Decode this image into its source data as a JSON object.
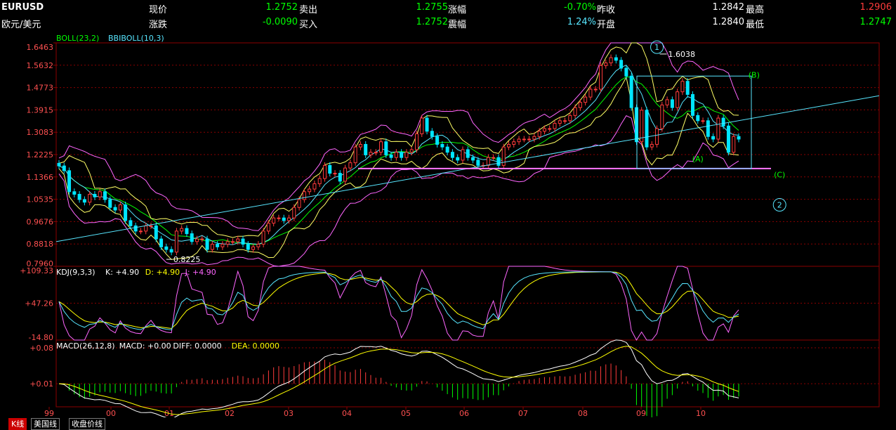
{
  "header": {
    "symbol": "EURUSD",
    "name": "欧元/美元",
    "items": [
      {
        "label": "现价",
        "value": "1.2752",
        "color": "#00ff00"
      },
      {
        "label": "卖出",
        "value": "1.2755",
        "color": "#00ff00"
      },
      {
        "label": "涨幅",
        "value": "-0.70%",
        "color": "#00ff00"
      },
      {
        "label": "昨收",
        "value": "1.2842",
        "color": "#ffffff"
      },
      {
        "label": "最高",
        "value": "1.2906",
        "color": "#ff3b3b"
      },
      {
        "label": "涨跌",
        "value": "-0.0090",
        "color": "#00ff00"
      },
      {
        "label": "买入",
        "value": "1.2752",
        "color": "#00ff00"
      },
      {
        "label": "震幅",
        "value": "1.24%",
        "color": "#57e6ff"
      },
      {
        "label": "开盘",
        "value": "1.2840",
        "color": "#ffffff"
      },
      {
        "label": "最低",
        "value": "1.2747",
        "color": "#00ff00"
      }
    ]
  },
  "tabs": [
    "K线",
    "美国线",
    "收盘价线"
  ],
  "colors": {
    "grid": "#8b0000",
    "up": "#ff3b3b",
    "down": "#00e5ff",
    "boll_mid": "#ffff66",
    "boll_band": "#ff66ff",
    "bbi": "#57e6ff",
    "trend": "#57e6ff",
    "support": "#ff77ff",
    "macd_up": "#ff3b3b",
    "macd_down": "#00ff00",
    "diff": "#ffffff",
    "dea": "#ffff00"
  },
  "chart_data": {
    "type": "candlestick",
    "x_ticks": [
      "99",
      "00",
      "01",
      "02",
      "03",
      "04",
      "05",
      "06",
      "07",
      "08",
      "09",
      "10"
    ],
    "main": {
      "legend": [
        {
          "text": "BOLL(23,2)",
          "color": "#00ff00"
        },
        {
          "text": "BBIBOLL(10,3)",
          "color": "#57e6ff"
        }
      ],
      "y_ticks": [
        "1.6463",
        "1.5632",
        "1.4773",
        "1.3915",
        "1.3083",
        "1.2225",
        "1.1366",
        "1.0535",
        "0.9676",
        "0.8818",
        "0.7960"
      ],
      "ylim": [
        0.796,
        1.6463
      ],
      "close_series_monthly": [
        1.178,
        1.16,
        1.08,
        1.07,
        1.05,
        1.04,
        1.07,
        1.06,
        1.08,
        1.05,
        1.02,
        1.01,
        1.03,
        0.97,
        0.95,
        0.93,
        0.93,
        0.95,
        0.95,
        0.9,
        0.87,
        0.86,
        0.85,
        0.93,
        0.94,
        0.92,
        0.89,
        0.9,
        0.9,
        0.86,
        0.88,
        0.87,
        0.88,
        0.89,
        0.89,
        0.9,
        0.88,
        0.86,
        0.87,
        0.88,
        0.93,
        0.96,
        0.98,
        0.98,
        0.97,
        0.98,
        1.02,
        1.05,
        1.08,
        1.09,
        1.11,
        1.13,
        1.18,
        1.15,
        1.15,
        1.12,
        1.17,
        1.19,
        1.25,
        1.26,
        1.22,
        1.23,
        1.23,
        1.27,
        1.22,
        1.21,
        1.23,
        1.21,
        1.23,
        1.24,
        1.3,
        1.36,
        1.31,
        1.29,
        1.26,
        1.25,
        1.23,
        1.21,
        1.2,
        1.24,
        1.21,
        1.2,
        1.18,
        1.18,
        1.21,
        1.21,
        1.18,
        1.25,
        1.26,
        1.27,
        1.28,
        1.28,
        1.28,
        1.29,
        1.31,
        1.32,
        1.32,
        1.34,
        1.35,
        1.35,
        1.37,
        1.4,
        1.42,
        1.44,
        1.47,
        1.47,
        1.56,
        1.57,
        1.59,
        1.58,
        1.55,
        1.52,
        1.4,
        1.27,
        1.39,
        1.25,
        1.26,
        1.32,
        1.41,
        1.43,
        1.4,
        1.46,
        1.5,
        1.45,
        1.37,
        1.35,
        1.35,
        1.29,
        1.28,
        1.36,
        1.33,
        1.23,
        1.29,
        1.28
      ],
      "annotations": [
        {
          "text": "1",
          "kind": "wave-circle",
          "color": "#57e6ff",
          "bar": 117
        },
        {
          "text": "2",
          "kind": "wave-circle",
          "color": "#57e6ff",
          "bar": 141
        },
        {
          "text": "(A)",
          "color": "#00ff00",
          "bar": 125
        },
        {
          "text": "(B)",
          "color": "#00ff00",
          "bar": 136
        },
        {
          "text": "(C)",
          "color": "#00ff00",
          "bar": 141
        },
        {
          "text": "1.6038",
          "color": "#ffffff",
          "bar": 117
        },
        {
          "text": "0.8225",
          "color": "#ffffff",
          "bar": 21
        }
      ],
      "support_level": 1.168
    },
    "kdj": {
      "legend": [
        {
          "text": "KDJ(9,3,3)",
          "color": "#ffffff"
        },
        {
          "text": "K: +4.90",
          "color": "#ffffff"
        },
        {
          "text": "D: +4.90",
          "color": "#ffff00"
        },
        {
          "text": "J: +4.90",
          "color": "#ff66ff"
        }
      ],
      "y_ticks": [
        "+109.33",
        "+47.26",
        "-14.80"
      ],
      "ylim": [
        -14.8,
        109.33
      ]
    },
    "macd": {
      "legend": [
        {
          "text": "MACD(26,12,8)",
          "color": "#ffffff"
        },
        {
          "text": "MACD: +0.00",
          "color": "#ffffff"
        },
        {
          "text": "DIFF: 0.0000",
          "color": "#ffffff"
        },
        {
          "text": "DEA: 0.0000",
          "color": "#ffff00"
        }
      ],
      "y_ticks": [
        "+0.08",
        "+0.01"
      ],
      "ylim": [
        -0.035,
        0.095
      ]
    }
  }
}
